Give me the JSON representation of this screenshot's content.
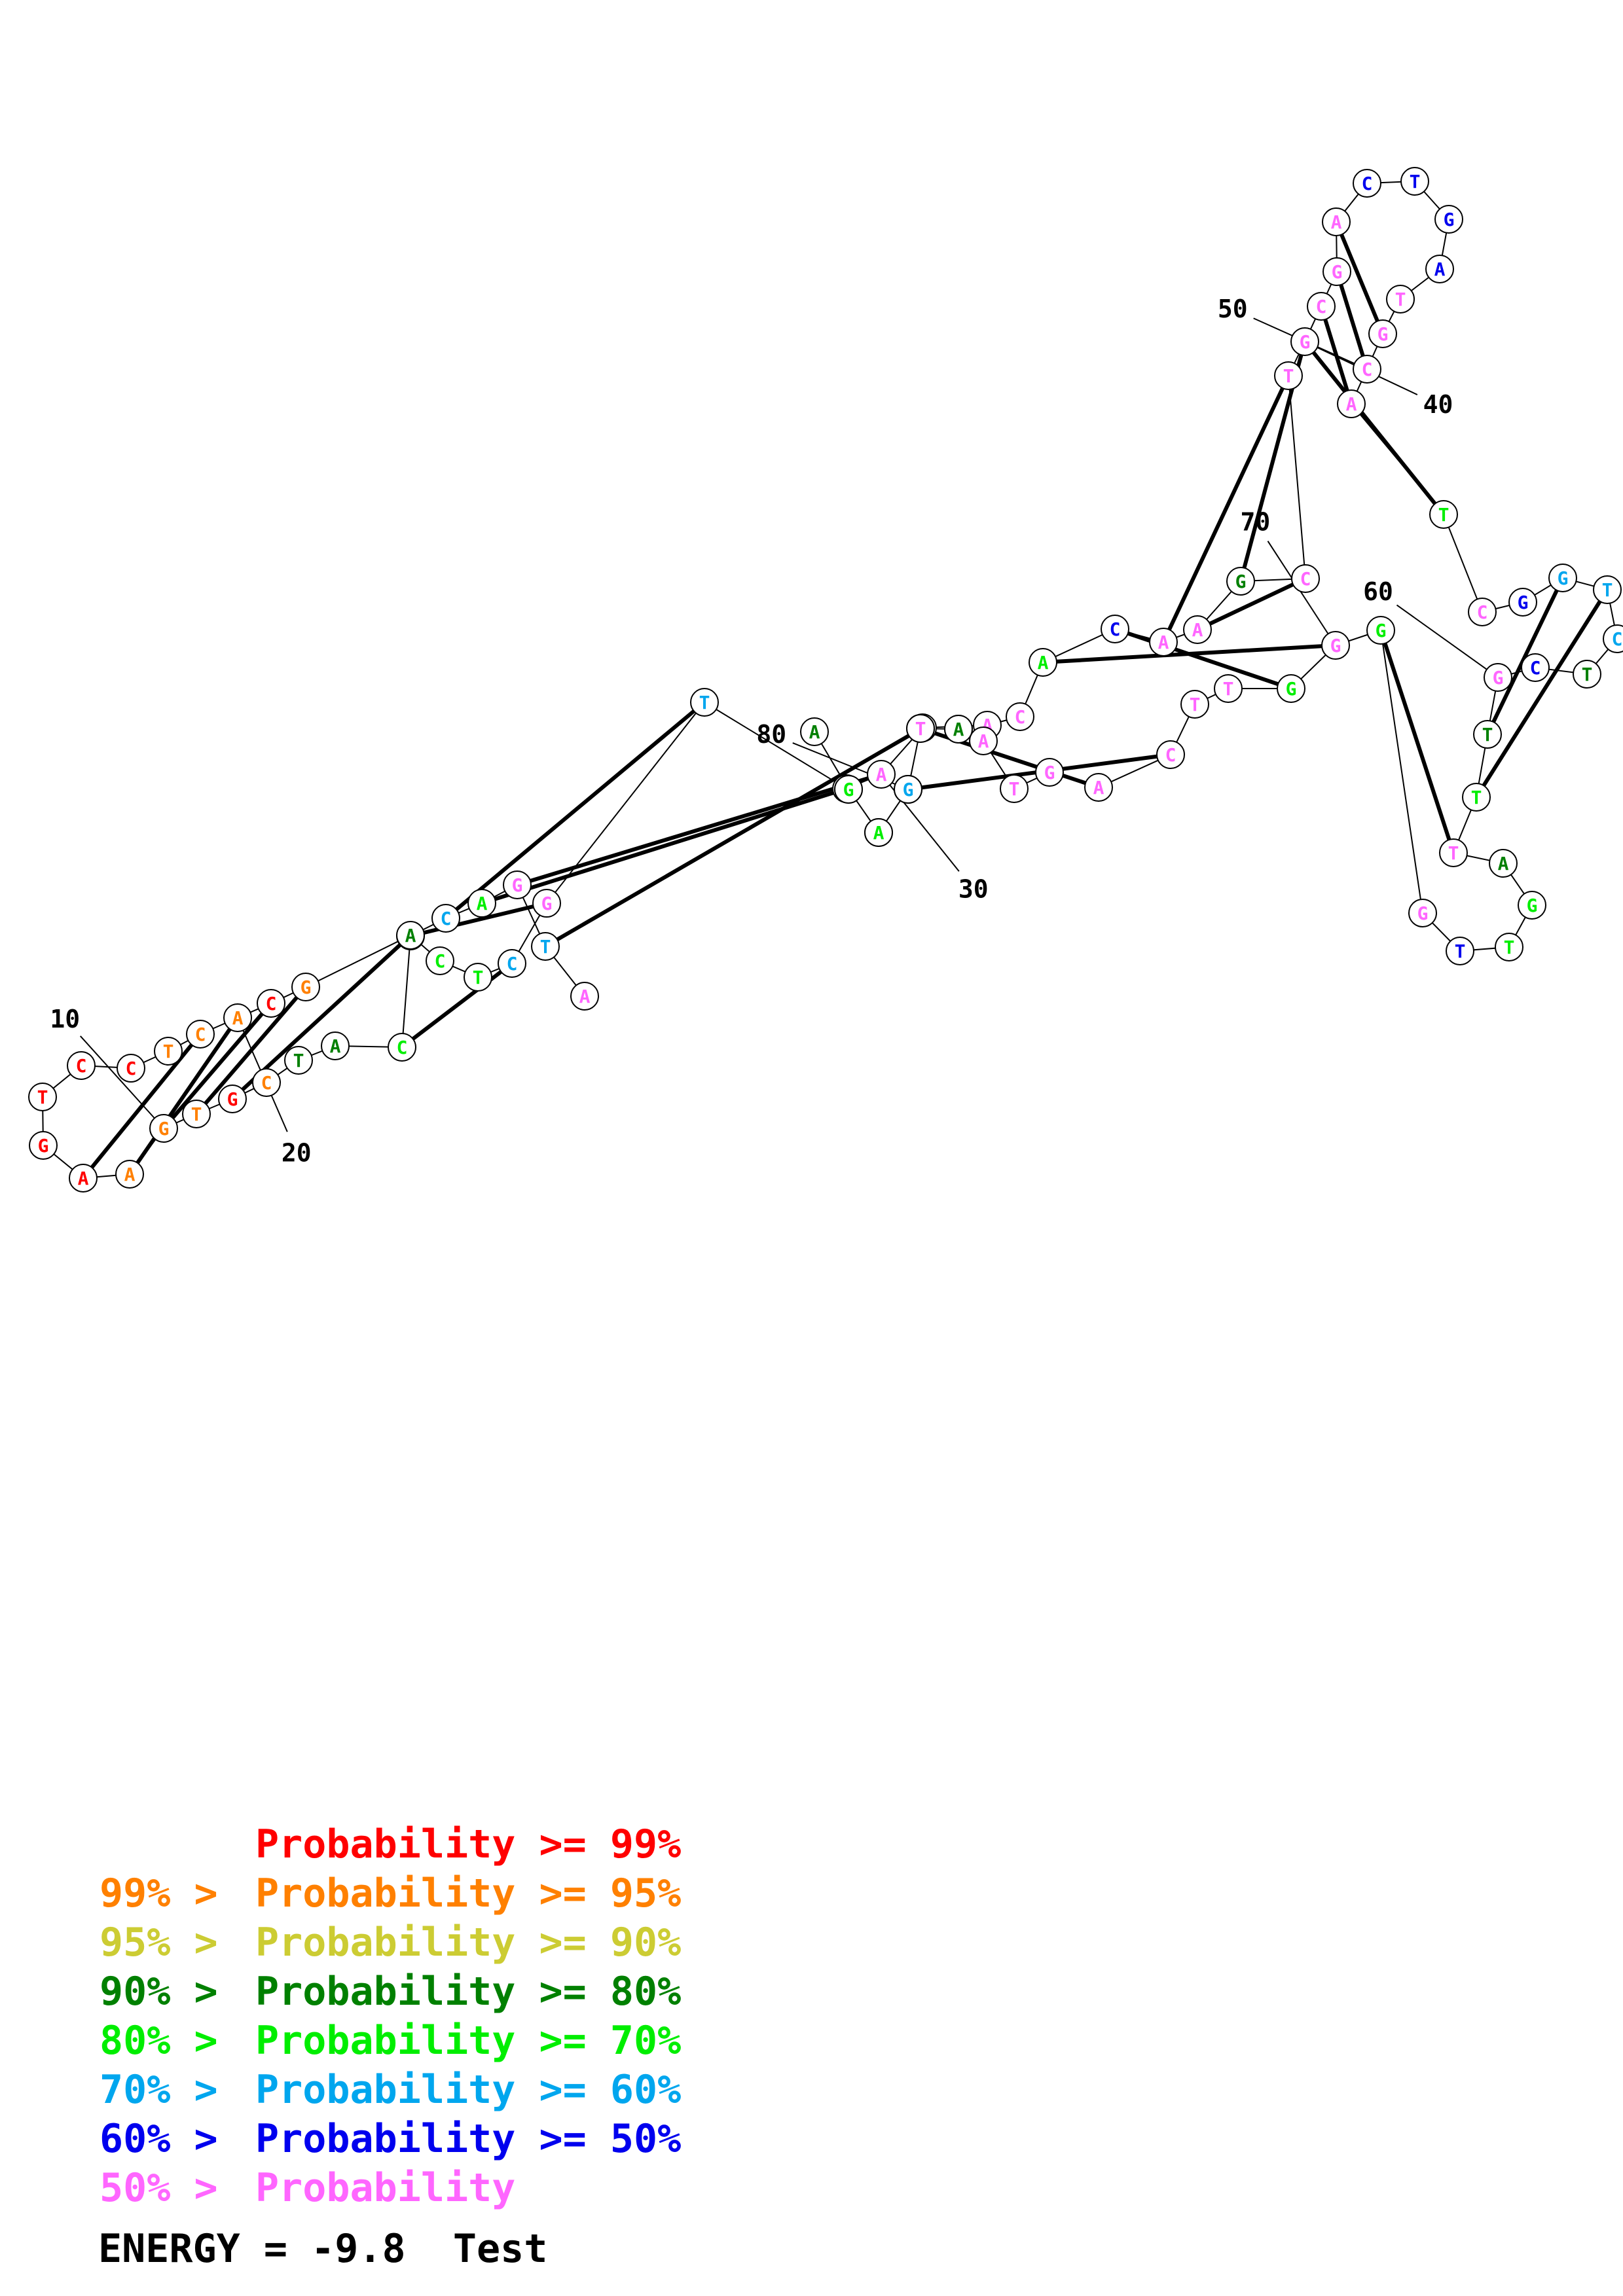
{
  "colors": {
    "p99": "#ff0000",
    "p95": "#ff8000",
    "p90": "#cccc33",
    "p80": "#008000",
    "p70": "#00ee00",
    "p60": "#00a6ee",
    "p50": "#0000ee",
    "p_low": "#ff66ff"
  },
  "structure": {
    "bases": [
      {
        "n": "A",
        "c": "p_low"
      },
      {
        "n": "T",
        "c": "p60"
      },
      {
        "n": "G",
        "c": "p_low"
      },
      {
        "n": "A",
        "c": "p70"
      },
      {
        "n": "C",
        "c": "p60"
      },
      {
        "n": "T",
        "c": "p70"
      },
      {
        "n": "C",
        "c": "p70"
      },
      {
        "n": "A",
        "c": "p80"
      },
      {
        "n": "T",
        "c": "p80"
      },
      {
        "n": "C",
        "c": "p95"
      },
      {
        "n": "G",
        "c": "p99"
      },
      {
        "n": "T",
        "c": "p95"
      },
      {
        "n": "G",
        "c": "p95"
      },
      {
        "n": "A",
        "c": "p95"
      },
      {
        "n": "A",
        "c": "p99"
      },
      {
        "n": "G",
        "c": "p99"
      },
      {
        "n": "T",
        "c": "p99"
      },
      {
        "n": "C",
        "c": "p99"
      },
      {
        "n": "C",
        "c": "p99"
      },
      {
        "n": "T",
        "c": "p95"
      },
      {
        "n": "C",
        "c": "p95"
      },
      {
        "n": "A",
        "c": "p95"
      },
      {
        "n": "C",
        "c": "p99"
      },
      {
        "n": "G",
        "c": "p95"
      },
      {
        "n": "A",
        "c": "p80"
      },
      {
        "n": "C",
        "c": "p70"
      },
      {
        "n": "T",
        "c": "p70"
      },
      {
        "n": "C",
        "c": "p60"
      },
      {
        "n": "G",
        "c": "p_low"
      },
      {
        "n": "T",
        "c": "p60"
      },
      {
        "n": "C",
        "c": "p_low"
      },
      {
        "n": "A",
        "c": "p_low"
      },
      {
        "n": "T",
        "c": "p80"
      },
      {
        "n": "A",
        "c": "p_low"
      },
      {
        "n": "C",
        "c": "p_low"
      },
      {
        "n": "A",
        "c": "p70"
      },
      {
        "n": "C",
        "c": "p50"
      },
      {
        "n": "A",
        "c": "p_low"
      },
      {
        "n": "A",
        "c": "p_low"
      },
      {
        "n": "G",
        "c": "p80"
      },
      {
        "n": "C",
        "c": "p_low"
      },
      {
        "n": "T",
        "c": "p_low"
      },
      {
        "n": "G",
        "c": "p_low"
      },
      {
        "n": "C",
        "c": "p_low"
      },
      {
        "n": "G",
        "c": "p_low"
      },
      {
        "n": "A",
        "c": "p_low"
      },
      {
        "n": "C",
        "c": "p50"
      },
      {
        "n": "T",
        "c": "p50"
      },
      {
        "n": "G",
        "c": "p50"
      },
      {
        "n": "A",
        "c": "p50"
      },
      {
        "n": "T",
        "c": "p_low"
      },
      {
        "n": "G",
        "c": "p_low"
      },
      {
        "n": "C",
        "c": "p_low"
      },
      {
        "n": "A",
        "c": "p_low"
      },
      {
        "n": "T",
        "c": "p70"
      },
      {
        "n": "C",
        "c": "p_low"
      },
      {
        "n": "G",
        "c": "p50"
      },
      {
        "n": "G",
        "c": "p60"
      },
      {
        "n": "T",
        "c": "p60"
      },
      {
        "n": "C",
        "c": "p60"
      },
      {
        "n": "T",
        "c": "p80"
      },
      {
        "n": "C",
        "c": "p50"
      },
      {
        "n": "G",
        "c": "p_low"
      },
      {
        "n": "T",
        "c": "p80"
      },
      {
        "n": "T",
        "c": "p70"
      },
      {
        "n": "T",
        "c": "p_low"
      },
      {
        "n": "A",
        "c": "p80"
      },
      {
        "n": "G",
        "c": "p70"
      },
      {
        "n": "T",
        "c": "p70"
      },
      {
        "n": "T",
        "c": "p50"
      },
      {
        "n": "G",
        "c": "p_low"
      },
      {
        "n": "G",
        "c": "p70"
      },
      {
        "n": "G",
        "c": "p_low"
      },
      {
        "n": "G",
        "c": "p70"
      },
      {
        "n": "T",
        "c": "p_low"
      },
      {
        "n": "T",
        "c": "p_low"
      },
      {
        "n": "C",
        "c": "p_low"
      },
      {
        "n": "A",
        "c": "p_low"
      },
      {
        "n": "G",
        "c": "p_low"
      },
      {
        "n": "T",
        "c": "p_low"
      },
      {
        "n": "A",
        "c": "p_low"
      },
      {
        "n": "C",
        "c": "p_low"
      },
      {
        "n": "G",
        "c": "p_low"
      },
      {
        "n": "T",
        "c": "p_low"
      },
      {
        "n": "A",
        "c": "p70"
      },
      {
        "n": "T",
        "c": "p80"
      },
      {
        "n": "A",
        "c": "p80"
      },
      {
        "n": "G",
        "c": "p70"
      },
      {
        "n": "A",
        "c": "p70"
      },
      {
        "n": "G",
        "c": "p60"
      },
      {
        "n": "T",
        "c": "p_low"
      },
      {
        "n": "A",
        "c": "p80"
      }
    ],
    "pairs": [
      [
        10,
        24
      ],
      [
        11,
        23
      ],
      [
        12,
        22
      ],
      [
        13,
        21
      ],
      [
        14,
        20
      ],
      [
        1,
        32
      ],
      [
        2,
        31
      ],
      [
        3,
        30
      ],
      [
        4,
        29
      ],
      [
        5,
        28
      ],
      [
        6,
        27
      ],
      [
        57,
        63
      ],
      [
        58,
        64
      ],
      [
        65,
        71
      ],
      [
        42,
        54
      ],
      [
        43,
        53
      ],
      [
        44,
        52
      ],
      [
        45,
        51
      ],
      [
        37,
        41
      ],
      [
        38,
        40
      ],
      [
        39,
        42
      ],
      [
        76,
        83
      ],
      [
        77,
        82
      ],
      [
        35,
        72
      ],
      [
        36,
        73
      ]
    ],
    "position_labels": [
      {
        "text": "10",
        "index": 12
      },
      {
        "text": "20",
        "index": 21
      },
      {
        "text": "30",
        "index": 31
      },
      {
        "text": "40",
        "index": 42
      },
      {
        "text": "50",
        "index": 52
      },
      {
        "text": "60",
        "index": 62
      },
      {
        "text": "70",
        "index": 72
      },
      {
        "text": "80",
        "index": 83
      }
    ]
  },
  "legend": [
    {
      "prefix": "",
      "text": "Probability >= 99%",
      "color": "p99"
    },
    {
      "prefix": "99% > ",
      "text": "Probability >= 95%",
      "color": "p95"
    },
    {
      "prefix": "95% > ",
      "text": "Probability >= 90%",
      "color": "p90"
    },
    {
      "prefix": "90% > ",
      "text": "Probability >= 80%",
      "color": "p80"
    },
    {
      "prefix": "80% > ",
      "text": "Probability >= 70%",
      "color": "p70"
    },
    {
      "prefix": "70% > ",
      "text": "Probability >= 60%",
      "color": "p60"
    },
    {
      "prefix": "60% > ",
      "text": "Probability >= 50%",
      "color": "p50"
    },
    {
      "prefix": "50% > ",
      "text": "Probability",
      "color": "p_low"
    }
  ],
  "energy_label": "ENERGY = -9.8  Test"
}
